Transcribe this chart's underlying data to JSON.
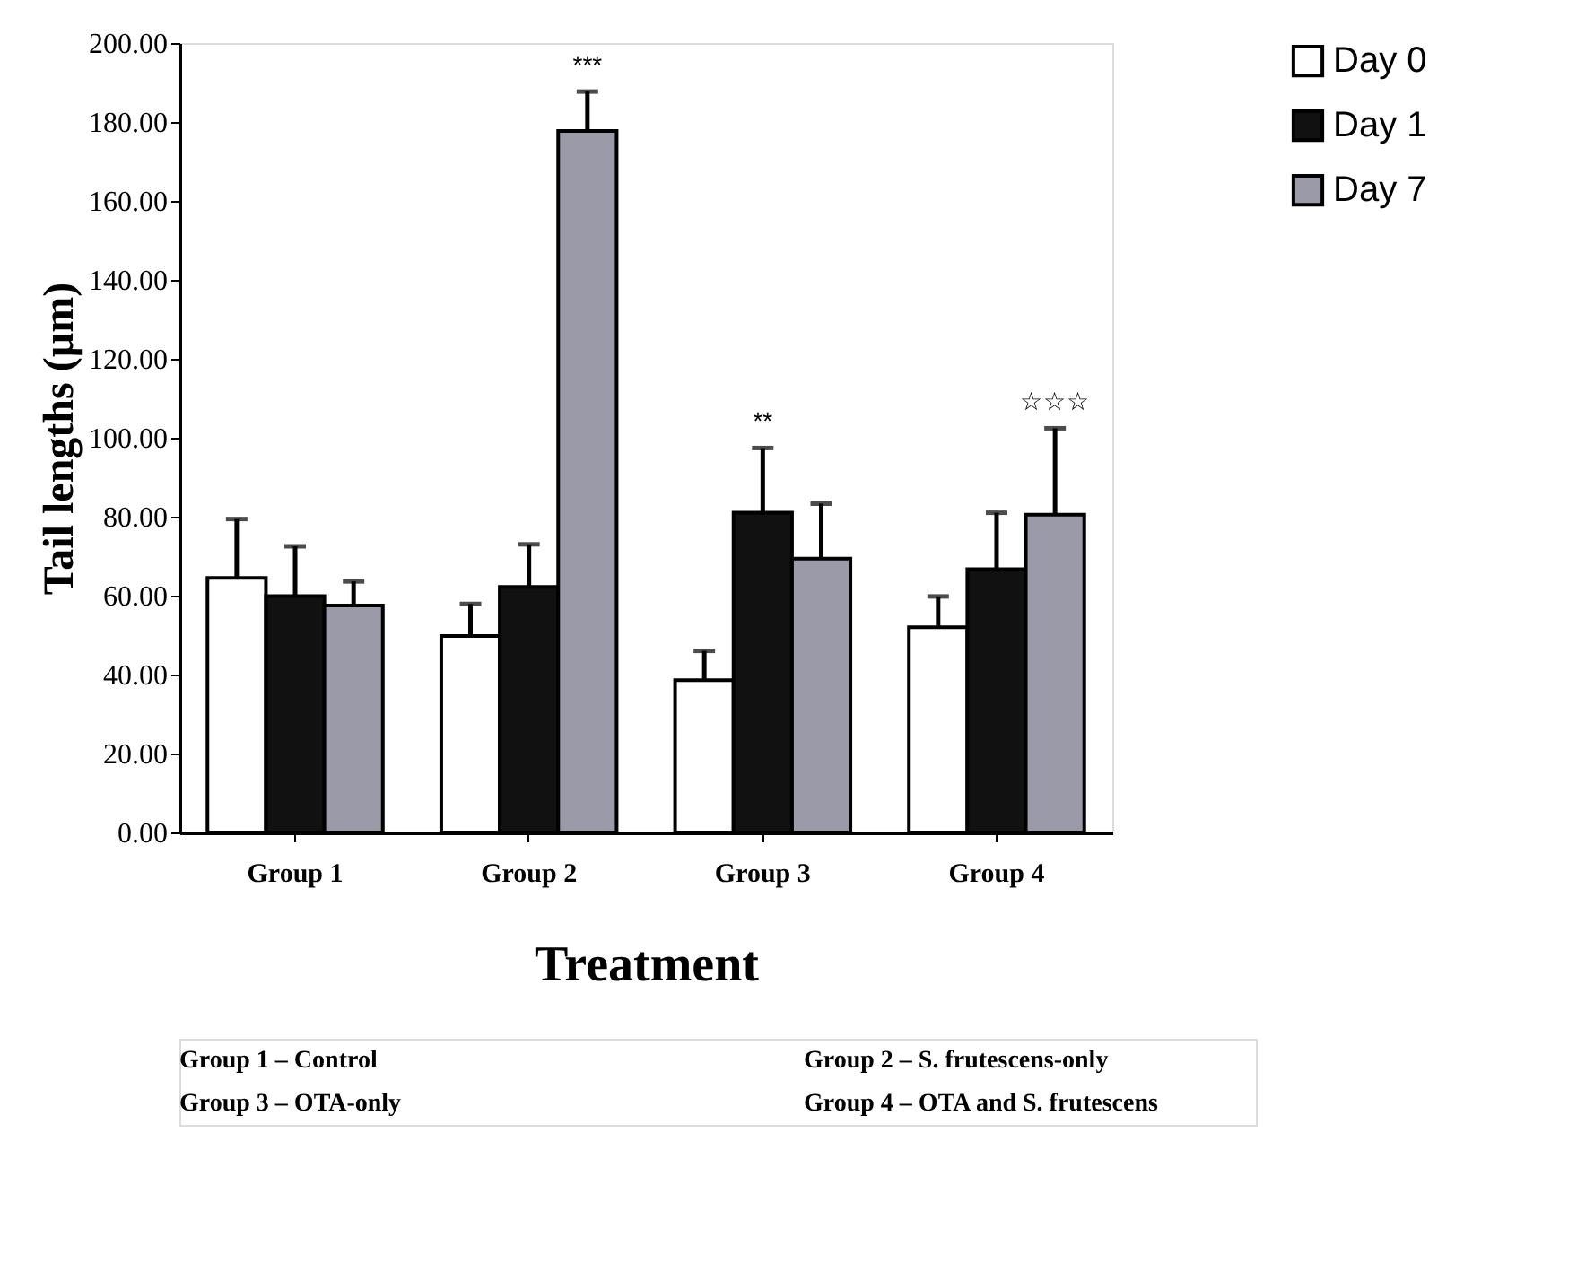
{
  "chart_data": {
    "type": "bar",
    "xlabel": "Treatment",
    "ylabel": "Tail lengths (µm)",
    "categories": [
      "Group 1",
      "Group 2",
      "Group 3",
      "Group 4"
    ],
    "series": [
      {
        "name": "Day 0",
        "color": "#ffffff",
        "values": [
          64.5,
          49.8,
          38.6,
          52
        ],
        "errors": [
          [
            64.5,
            79.4
          ],
          [
            49.8,
            57.9
          ],
          [
            38.6,
            46
          ],
          [
            52,
            59.8
          ]
        ]
      },
      {
        "name": "Day 1",
        "color": "#111111",
        "values": [
          59.9,
          62.2,
          81,
          66.7
        ],
        "errors": [
          [
            59.9,
            72.5
          ],
          [
            62.2,
            73
          ],
          [
            81,
            97.4
          ],
          [
            66.7,
            81
          ]
        ]
      },
      {
        "name": "Day 7",
        "color": "#9a9aa8",
        "values": [
          57.5,
          177.7,
          69.4,
          80.5
        ],
        "errors": [
          [
            57.5,
            63.6
          ],
          [
            177.7,
            187.7
          ],
          [
            69.4,
            83.3
          ],
          [
            80.5,
            102.4
          ]
        ]
      }
    ],
    "ylim": [
      0,
      200
    ],
    "yticks": [
      {
        "value": 0,
        "label": "0.00"
      },
      {
        "value": 20,
        "label": "20.00"
      },
      {
        "value": 40,
        "label": "40.00"
      },
      {
        "value": 60,
        "label": "60.00"
      },
      {
        "value": 80,
        "label": "80.00"
      },
      {
        "value": 100,
        "label": "100.00"
      },
      {
        "value": 120,
        "label": "120.00"
      },
      {
        "value": 140,
        "label": "140.00"
      },
      {
        "value": 160,
        "label": "160.00"
      },
      {
        "value": 180,
        "label": "180.00"
      },
      {
        "value": 200,
        "label": "200.00"
      }
    ],
    "legend": "top right",
    "grid": false,
    "annotations": [
      "***",
      "**",
      "☆☆☆",
      "Group 1 – Control",
      "Group 2 – S. frutescens-only",
      "Group 3 – OTA-only",
      "Group 4 – OTA and S. frutescens"
    ]
  }
}
